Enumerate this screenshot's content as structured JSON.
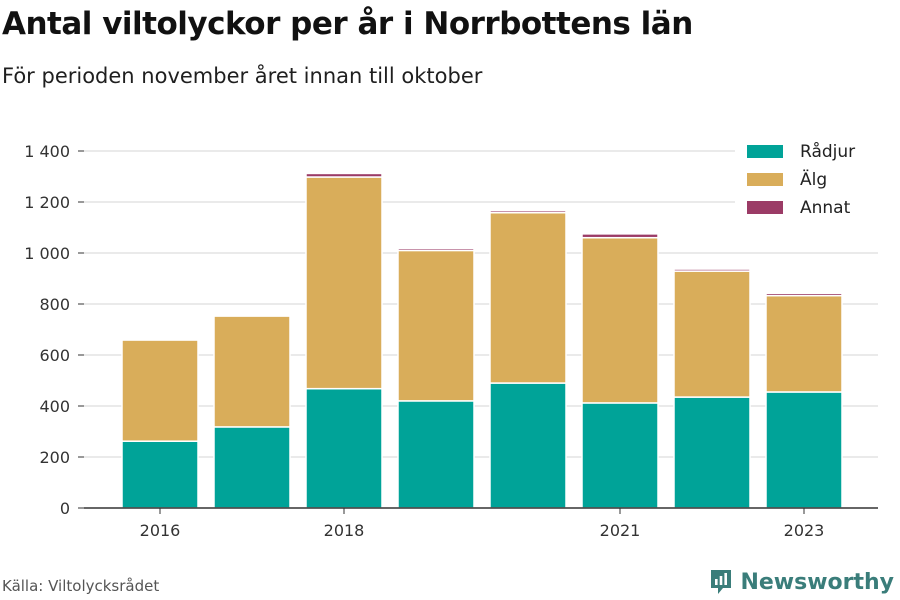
{
  "title": "Antal viltolyckor per år i Norrbottens län",
  "subtitle": "För perioden november året innan till oktober",
  "source": "Källa: Viltolycksrådet",
  "brand": "Newsworthy",
  "colors": {
    "radjur": "#00a398",
    "alg": "#d9ad5a",
    "annat": "#9b3b66",
    "grid": "#dddddd",
    "axis": "#333333",
    "text": "#333333"
  },
  "chart_data": {
    "type": "bar",
    "stacked": true,
    "x": [
      2016,
      2017,
      2018,
      2019,
      2020,
      2021,
      2022,
      2023
    ],
    "x_tick_labels": [
      "2016",
      "2018",
      "2021",
      "2023"
    ],
    "x_tick_values": [
      2016,
      2018,
      2021,
      2023
    ],
    "ylim": [
      0,
      1400
    ],
    "y_ticks": [
      0,
      200,
      400,
      600,
      800,
      1000,
      1200,
      1400
    ],
    "y_tick_labels": [
      "0",
      "200",
      "400",
      "600",
      "800",
      "1 000",
      "1 200",
      "1 400"
    ],
    "grid": true,
    "legend_position": "top-right",
    "series": [
      {
        "name": "Rådjur",
        "color": "#00a398",
        "values": [
          262,
          318,
          468,
          420,
          490,
          412,
          435,
          455
        ]
      },
      {
        "name": "Älg",
        "color": "#d9ad5a",
        "values": [
          397,
          435,
          830,
          590,
          668,
          648,
          494,
          378
        ]
      },
      {
        "name": "Annat",
        "color": "#9b3b66",
        "values": [
          2,
          2,
          14,
          8,
          8,
          15,
          8,
          9
        ]
      }
    ]
  }
}
